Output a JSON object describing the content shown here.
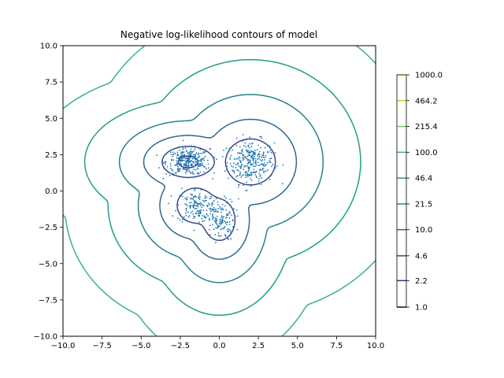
{
  "chart_data": {
    "type": "contour",
    "title": "Negative log-likelihood contours of model",
    "xlim": [
      -10,
      10
    ],
    "ylim": [
      -10,
      10
    ],
    "x_ticks": [
      -10.0,
      -7.5,
      -5.0,
      -2.5,
      0.0,
      2.5,
      5.0,
      7.5,
      10.0
    ],
    "x_tick_labels": [
      "−10.0",
      "−7.5",
      "−5.0",
      "−2.5",
      "0.0",
      "2.5",
      "5.0",
      "7.5",
      "10.0"
    ],
    "y_ticks": [
      -10.0,
      -7.5,
      -5.0,
      -2.5,
      0.0,
      2.5,
      5.0,
      7.5,
      10.0
    ],
    "y_tick_labels": [
      "−10.0",
      "−7.5",
      "−5.0",
      "−2.5",
      "0.0",
      "2.5",
      "5.0",
      "7.5",
      "10.0"
    ],
    "colorbar": {
      "scale": "log",
      "levels": [
        1.0,
        2.2,
        4.6,
        10.0,
        21.5,
        46.4,
        100.0,
        215.4,
        464.2,
        1000.0
      ],
      "labels": [
        "1.0",
        "2.2",
        "4.6",
        "10.0",
        "21.5",
        "46.4",
        "100.0",
        "215.4",
        "464.2",
        "1000.0"
      ],
      "colors": [
        "#440154",
        "#482878",
        "#3e4989",
        "#31688e",
        "#26828e",
        "#1f9e89",
        "#35b779",
        "#6ece58",
        "#b5de2b",
        "#fde725"
      ]
    },
    "clusters": [
      {
        "center": [
          2.0,
          2.0
        ],
        "spread": [
          0.75,
          0.75
        ],
        "count": 300
      },
      {
        "center": [
          -2.0,
          2.0
        ],
        "spread": [
          0.7,
          0.45
        ],
        "count": 300
      },
      {
        "center": [
          -1.5,
          -1.0
        ],
        "spread": [
          0.6,
          0.6
        ],
        "count": 150
      },
      {
        "center": [
          0.0,
          -2.0
        ],
        "spread": [
          0.5,
          0.7
        ],
        "count": 150
      }
    ],
    "scatter_color": "#1f77b4",
    "grid": false
  }
}
